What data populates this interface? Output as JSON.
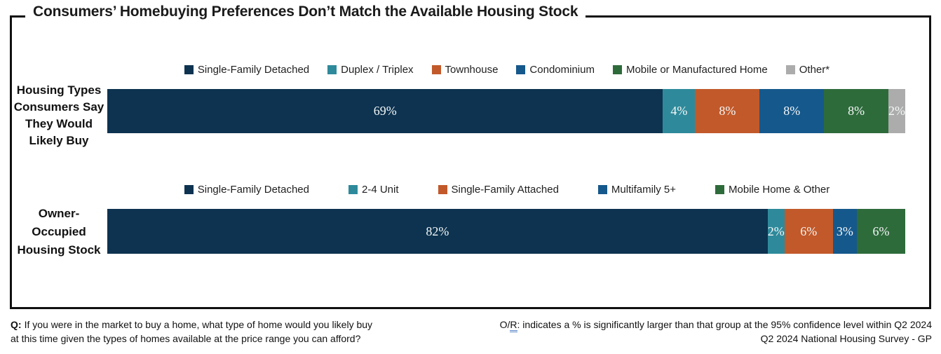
{
  "title": "Consumers’ Homebuying Preferences Don’t Match the Available Housing Stock",
  "colors": {
    "frame": "#101010",
    "navy": "#0D3350",
    "teal": "#2E8A9B",
    "orange": "#C2592A",
    "blue": "#15588C",
    "green": "#2E6B3B",
    "gray": "#ACACAC",
    "note_underline": "#5B87C5",
    "bar_label_text": "#F4F7F7"
  },
  "chart_data": [
    {
      "type": "bar",
      "orientation": "horizontal_stacked",
      "legend_position": "top",
      "values_are_percent": true,
      "xlim": [
        0,
        99
      ],
      "category": "Housing Types Consumers Say They Would Likely Buy",
      "category_lines": [
        "Housing Types",
        "Consumers Say",
        "They Would",
        "Likely Buy"
      ],
      "segments": [
        {
          "label": "Single-Family Detached",
          "value": 69,
          "display": "69%",
          "color": "#0D3350"
        },
        {
          "label": "Duplex / Triplex",
          "value": 4,
          "display": "4%",
          "color": "#2E8A9B"
        },
        {
          "label": "Townhouse",
          "value": 8,
          "display": "8%",
          "color": "#C2592A"
        },
        {
          "label": "Condominium",
          "value": 8,
          "display": "8%",
          "color": "#15588C"
        },
        {
          "label": "Mobile or Manufactured Home",
          "value": 8,
          "display": "8%",
          "color": "#2E6B3B"
        },
        {
          "label": "Other*",
          "value": 2,
          "display": "2%",
          "color": "#ACACAC"
        }
      ]
    },
    {
      "type": "bar",
      "orientation": "horizontal_stacked",
      "legend_position": "top",
      "values_are_percent": true,
      "xlim": [
        0,
        99
      ],
      "category": "Owner-Occupied Housing Stock",
      "category_lines": [
        "Owner-",
        "Occupied",
        "Housing Stock"
      ],
      "segments": [
        {
          "label": "Single-Family Detached",
          "value": 82,
          "display": "82%",
          "color": "#0D3350"
        },
        {
          "label": "2-4 Unit",
          "value": 2,
          "display": "2%",
          "color": "#2E8A9B"
        },
        {
          "label": "Single-Family Attached",
          "value": 6,
          "display": "6%",
          "color": "#C2592A"
        },
        {
          "label": "Multifamily 5+",
          "value": 3,
          "display": "3%",
          "color": "#15588C"
        },
        {
          "label": "Mobile Home & Other",
          "value": 6,
          "display": "6%",
          "color": "#2E6B3B"
        }
      ]
    }
  ],
  "footer": {
    "q_label": "Q:",
    "question_line1": "If you were in the market to buy a home, what type of home would you likely buy",
    "question_line2": "at this time given the types of homes available at the price range you can afford?",
    "note_prefix": "O/",
    "note_r": "R",
    "note_rest": ": indicates a % is significantly larger than that group at the 95% confidence level within Q2 2024",
    "source": "Q2 2024 National Housing Survey - GP"
  }
}
